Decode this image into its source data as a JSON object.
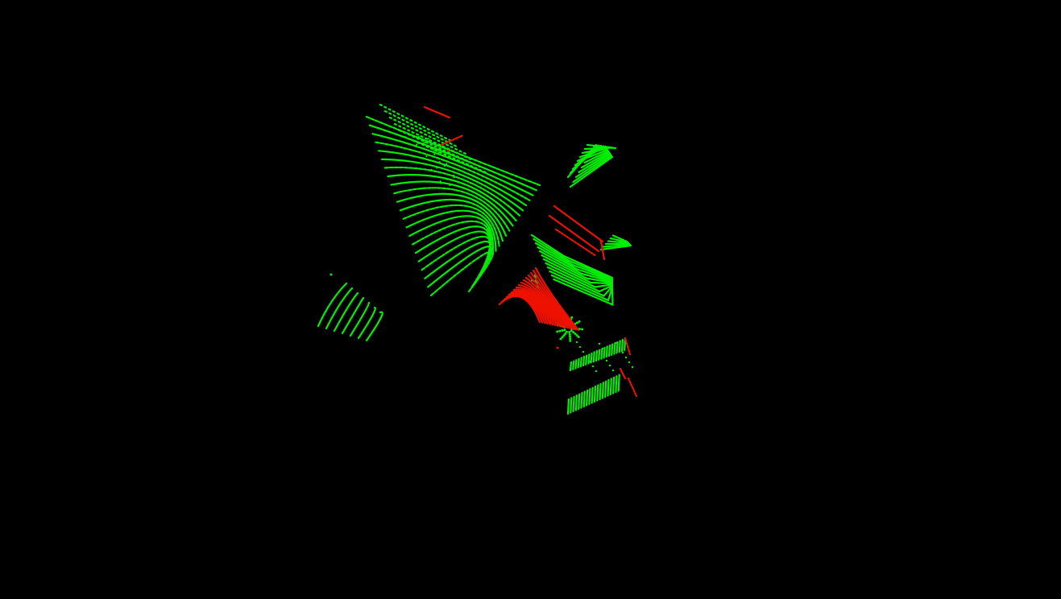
{
  "viewer": {
    "background_color": "#000000",
    "colors": {
      "ground": "#00ee00",
      "highlight": "#ee1100"
    },
    "legend": []
  }
}
